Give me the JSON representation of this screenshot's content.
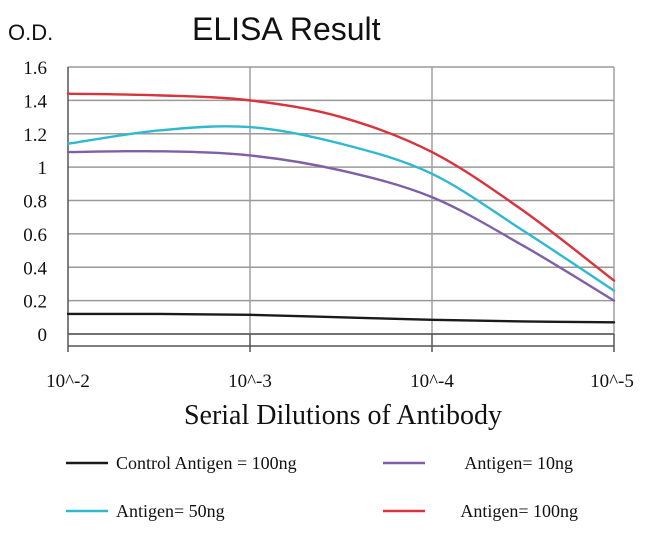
{
  "chart_data": {
    "type": "line",
    "title": "ELISA Result",
    "ylabel": "O.D.",
    "xlabel": "Serial Dilutions of Antibody",
    "categories": [
      "10^-2",
      "10^-3",
      "10^-4",
      "10^-5"
    ],
    "x_scale": "log-dilution",
    "ylim": [
      0,
      1.6
    ],
    "yticks": [
      "0",
      "0.2",
      "0.4",
      "0.6",
      "0.8",
      "1",
      "1.2",
      "1.4",
      "1.6"
    ],
    "grid": true,
    "legend_position": "bottom",
    "series": [
      {
        "name": "Control Antigen = 100ng",
        "color": "#1a1a1a",
        "points": [
          [
            0,
            0.12
          ],
          [
            0.5,
            0.12
          ],
          [
            1,
            0.115
          ],
          [
            1.5,
            0.1
          ],
          [
            2,
            0.085
          ],
          [
            2.5,
            0.075
          ],
          [
            3,
            0.07
          ]
        ]
      },
      {
        "name": "Antigen= 10ng",
        "color": "#7f5fa8",
        "points": [
          [
            0,
            1.09
          ],
          [
            0.5,
            1.095
          ],
          [
            1,
            1.07
          ],
          [
            1.5,
            0.98
          ],
          [
            2,
            0.82
          ],
          [
            2.5,
            0.53
          ],
          [
            3,
            0.2
          ]
        ]
      },
      {
        "name": "Antigen= 50ng",
        "color": "#2fb9d0",
        "points": [
          [
            0,
            1.14
          ],
          [
            0.5,
            1.22
          ],
          [
            1,
            1.24
          ],
          [
            1.5,
            1.14
          ],
          [
            2,
            0.96
          ],
          [
            2.5,
            0.62
          ],
          [
            3,
            0.26
          ]
        ]
      },
      {
        "name": "Antigen= 100ng",
        "color": "#d9333b",
        "points": [
          [
            0,
            1.44
          ],
          [
            0.5,
            1.43
          ],
          [
            1,
            1.4
          ],
          [
            1.5,
            1.3
          ],
          [
            2,
            1.09
          ],
          [
            2.5,
            0.74
          ],
          [
            3,
            0.32
          ]
        ]
      }
    ]
  }
}
